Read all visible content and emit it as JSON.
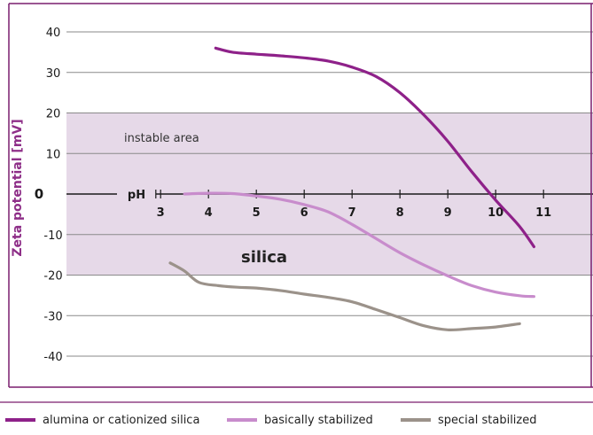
{
  "colors": {
    "frame": "#7a1e6e",
    "band": "#e6d9e8",
    "grid": "#8a8a8a",
    "axis": "#1a1a1a",
    "ylabel": "#8e2f88",
    "alumina": "#8e2189",
    "basic": "#c88ccc",
    "special": "#9b928a"
  },
  "chart_data": {
    "type": "line",
    "ylabel": "Zeta potential [mV]",
    "xlabel": "pH",
    "ylim": [
      -40,
      40
    ],
    "xlim": [
      2.2,
      11.8
    ],
    "y_ticks": [
      "40",
      "30",
      "20",
      "10",
      "0",
      "-10",
      "-20",
      "-30",
      "-40"
    ],
    "x_ticks": [
      "3",
      "4",
      "5",
      "6",
      "7",
      "8",
      "9",
      "10",
      "11"
    ],
    "band": {
      "from": -20,
      "to": 20
    },
    "annotations": {
      "instable": "instable area",
      "silica": "silica"
    },
    "legend": [
      {
        "label": "alumina or cationized silica",
        "color": "#8e2189"
      },
      {
        "label": "basically stabilized",
        "color": "#c88ccc"
      },
      {
        "label": "special stabilized",
        "color": "#9b928a"
      }
    ],
    "series": [
      {
        "name": "alumina or cationized silica",
        "color": "#8e2189",
        "x": [
          4.15,
          4.5,
          5.0,
          5.5,
          6.0,
          6.5,
          7.0,
          7.5,
          8.0,
          8.5,
          9.0,
          9.5,
          10.0,
          10.5,
          10.8
        ],
        "y": [
          36,
          35,
          34.5,
          34.1,
          33.6,
          32.8,
          31.3,
          29,
          25,
          19.5,
          13,
          5.5,
          -1.5,
          -8,
          -13
        ]
      },
      {
        "name": "basically stabilized",
        "color": "#c88ccc",
        "x": [
          3.5,
          4.0,
          4.5,
          5.0,
          5.5,
          6.0,
          6.5,
          7.0,
          7.5,
          8.0,
          8.5,
          9.0,
          9.5,
          10.0,
          10.5,
          10.8
        ],
        "y": [
          0,
          0.2,
          0.1,
          -0.5,
          -1.3,
          -2.6,
          -4.4,
          -7.5,
          -11,
          -14.5,
          -17.5,
          -20.2,
          -22.6,
          -24.2,
          -25.1,
          -25.3
        ]
      },
      {
        "name": "special stabilized",
        "color": "#9b928a",
        "x": [
          3.2,
          3.5,
          3.8,
          4.2,
          4.6,
          5.0,
          5.5,
          6.0,
          6.5,
          7.0,
          7.5,
          8.0,
          8.5,
          9.0,
          9.5,
          10.0,
          10.5
        ],
        "y": [
          -17,
          -19,
          -21.8,
          -22.6,
          -23,
          -23.2,
          -23.8,
          -24.7,
          -25.5,
          -26.6,
          -28.5,
          -30.5,
          -32.5,
          -33.5,
          -33.2,
          -32.8,
          -32
        ]
      }
    ]
  }
}
